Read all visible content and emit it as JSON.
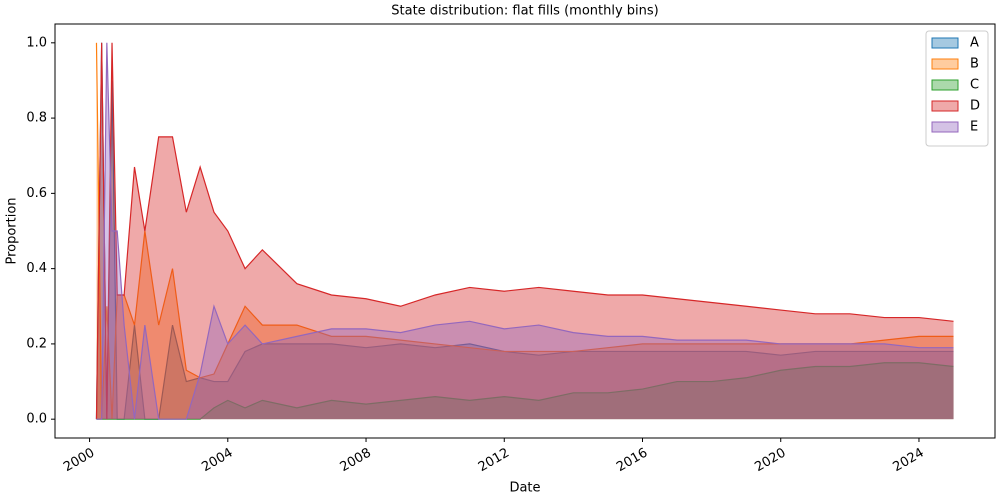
{
  "chart_data": {
    "type": "area",
    "title": "State distribution: flat fills (monthly bins)",
    "x_label": "Date",
    "y_label": "Proportion",
    "x": [
      2000.2,
      2000.35,
      2000.5,
      2000.65,
      2000.8,
      2001.0,
      2001.3,
      2001.6,
      2002.0,
      2002.4,
      2002.8,
      2003.2,
      2003.6,
      2004.0,
      2004.5,
      2005,
      2006,
      2007,
      2008,
      2009,
      2010,
      2011,
      2012,
      2013,
      2014,
      2015,
      2016,
      2017,
      2018,
      2019,
      2020,
      2021,
      2022,
      2023,
      2024,
      2025
    ],
    "series": [
      {
        "name": "A",
        "color": "#1f77b4",
        "values": [
          0,
          1.0,
          0,
          0.9,
          0,
          0,
          0.25,
          0,
          0,
          0.25,
          0.1,
          0.11,
          0.1,
          0.1,
          0.18,
          0.2,
          0.2,
          0.2,
          0.19,
          0.2,
          0.19,
          0.2,
          0.18,
          0.17,
          0.18,
          0.18,
          0.18,
          0.18,
          0.18,
          0.18,
          0.17,
          0.18,
          0.18,
          0.18,
          0.18,
          0.18
        ]
      },
      {
        "name": "B",
        "color": "#ff7f0e",
        "values": [
          1.0,
          0,
          0.3,
          0,
          0.33,
          0.33,
          0.25,
          0.5,
          0.25,
          0.4,
          0.13,
          0.11,
          0.12,
          0.2,
          0.3,
          0.25,
          0.25,
          0.22,
          0.22,
          0.21,
          0.2,
          0.19,
          0.18,
          0.18,
          0.18,
          0.19,
          0.2,
          0.2,
          0.2,
          0.2,
          0.2,
          0.2,
          0.2,
          0.21,
          0.22,
          0.22
        ]
      },
      {
        "name": "C",
        "color": "#2ca02c",
        "values": [
          0,
          0,
          0,
          0,
          0,
          0,
          0,
          0,
          0,
          0,
          0,
          0,
          0.03,
          0.05,
          0.03,
          0.05,
          0.03,
          0.05,
          0.04,
          0.05,
          0.06,
          0.05,
          0.06,
          0.05,
          0.07,
          0.07,
          0.08,
          0.1,
          0.1,
          0.11,
          0.13,
          0.14,
          0.14,
          0.15,
          0.15,
          0.14
        ]
      },
      {
        "name": "D",
        "color": "#d62728",
        "values": [
          0,
          1.0,
          0,
          1.0,
          0.33,
          0.33,
          0.67,
          0.5,
          0.75,
          0.75,
          0.55,
          0.67,
          0.55,
          0.5,
          0.4,
          0.45,
          0.36,
          0.33,
          0.32,
          0.3,
          0.33,
          0.35,
          0.34,
          0.35,
          0.34,
          0.33,
          0.33,
          0.32,
          0.31,
          0.3,
          0.29,
          0.28,
          0.28,
          0.27,
          0.27,
          0.26
        ]
      },
      {
        "name": "E",
        "color": "#9467bd",
        "values": [
          0,
          0,
          1.0,
          0.5,
          0.5,
          0.25,
          0,
          0.25,
          0,
          0,
          0,
          0.12,
          0.3,
          0.2,
          0.25,
          0.2,
          0.22,
          0.24,
          0.24,
          0.23,
          0.25,
          0.26,
          0.24,
          0.25,
          0.23,
          0.22,
          0.22,
          0.21,
          0.21,
          0.21,
          0.2,
          0.2,
          0.2,
          0.2,
          0.19,
          0.19
        ]
      }
    ],
    "fill_opacity": 0.4,
    "xlim": [
      1999.0,
      2026.2
    ],
    "xticks": [
      2000,
      2004,
      2008,
      2012,
      2016,
      2020,
      2024
    ],
    "ylim": [
      -0.05,
      1.05
    ],
    "yticks": [
      {
        "value": 0,
        "label": "0.0"
      },
      0.2,
      0.4,
      0.6,
      0.8,
      {
        "value": 1,
        "label": "1.0"
      }
    ],
    "grid": false,
    "legend": "upper right"
  }
}
